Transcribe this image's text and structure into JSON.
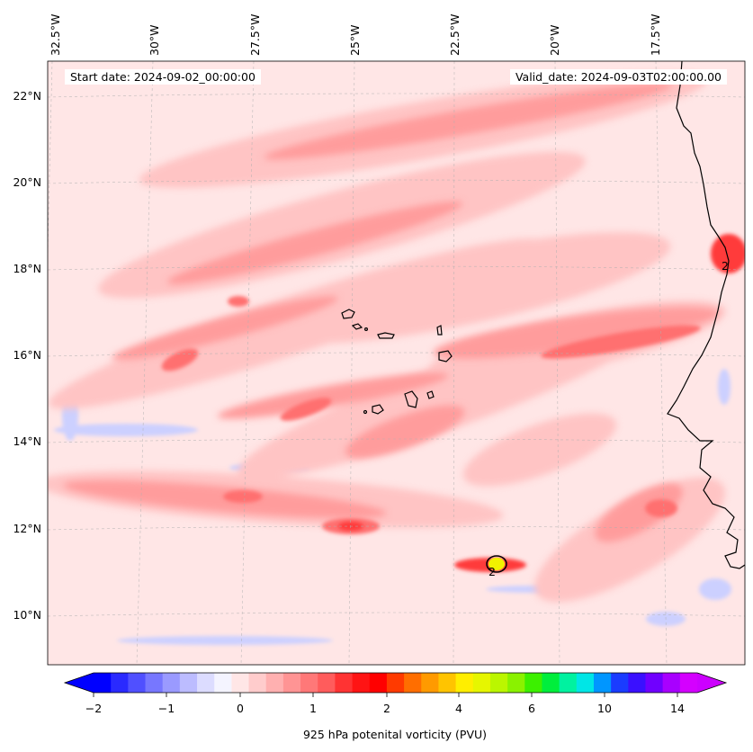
{
  "map": {
    "start_date_label": "Start date: 2024-09-02_00:00:00",
    "valid_date_label": "Valid_date: 2024-09-03T02:00:00.00",
    "lon_labels": [
      "32.5°W",
      "30°W",
      "27.5°W",
      "25°W",
      "22.5°W",
      "20°W",
      "17.5°W"
    ],
    "lat_labels": [
      "22°N",
      "20°N",
      "18°N",
      "16°N",
      "14°N",
      "12°N",
      "10°N"
    ],
    "contour_labels": [
      "2",
      "2"
    ],
    "colors": {
      "background_field": "#ffe6e6",
      "coast": "#000000",
      "low_pv_blue": "#ccd0ff",
      "pink_light": "#ffc4c4",
      "pink_mid": "#ff9c9c",
      "red_mid": "#ff7070",
      "red_strong": "#ff3a3a",
      "yellow_core": "#f2f200"
    }
  },
  "colorbar": {
    "label": "925 hPa potenital vorticity (PVU)",
    "tick_labels": [
      "−2",
      "−1",
      "0",
      "1",
      "2",
      "4",
      "6",
      "10",
      "14"
    ],
    "colors": [
      "#0000ff",
      "#2a2aff",
      "#5050ff",
      "#7777ff",
      "#9a9aff",
      "#bcbcff",
      "#dcdcff",
      "#f4f4ff",
      "#ffe6e6",
      "#ffcccc",
      "#ffb0b0",
      "#ff9494",
      "#ff7878",
      "#ff5c5c",
      "#ff3333",
      "#ff1414",
      "#ff0000",
      "#ff3a00",
      "#ff6e00",
      "#ff9a00",
      "#ffc400",
      "#ffee00",
      "#e6f600",
      "#bbf600",
      "#8af200",
      "#3cf000",
      "#00ee3c",
      "#00f2a0",
      "#00e6e6",
      "#0096ff",
      "#1a3cff",
      "#3a10ff",
      "#7000ff",
      "#a800ff",
      "#d400ff"
    ],
    "extend_min_color": "#0000ff",
    "extend_max_color": "#cc00ff"
  }
}
